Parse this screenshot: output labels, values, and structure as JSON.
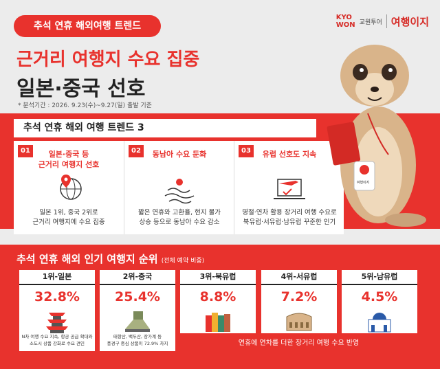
{
  "badge": "추석 연휴 해외여행 트렌드",
  "logo": {
    "brand_en_1": "KYO",
    "brand_en_2": "WON",
    "brand_ko": "교원투어",
    "service": "여행이지"
  },
  "headline": {
    "line1": "근거리 여행지 수요 집중",
    "line2": "일본·중국 선호"
  },
  "note": "* 분석기간 : 2026. 9.23(수)~9.27(일) 출발 기준",
  "trends": {
    "title": "추석 연휴 해외 여행 트렌드 3",
    "items": [
      {
        "number": "01",
        "title": [
          "일본·중국 등",
          "근거리 여행지 선호"
        ],
        "desc": [
          "일본 1위, 중국 2위로",
          "근거리 여행지에 수요 집중"
        ]
      },
      {
        "number": "02",
        "title": [
          "동남아 수요 둔화"
        ],
        "desc": [
          "짧은 연휴와 고환율, 현지 물가",
          "상승 등으로 동남아 수요 감소"
        ]
      },
      {
        "number": "03",
        "title": [
          "유럽 선호도 지속"
        ],
        "desc": [
          "명절·연차 활용 장거리 여행 수요로",
          "북유럽·서유럽·남유럽 꾸준한 인기"
        ]
      }
    ]
  },
  "mascot_tag": "여행이지",
  "ranking": {
    "title": "추석 연휴 해외 인기 여행지 순위",
    "subtitle": "(전체 예약 비중)",
    "items": [
      {
        "label": "1위-일본",
        "share": "32.8%",
        "desc": [
          "N차 여행 수요 지속, 항공 공급 확대와",
          "소도시 상품 강화로 수요 견인"
        ]
      },
      {
        "label": "2위-중국",
        "share": "25.4%",
        "desc": [
          "태항산, 백두산, 장가계 등",
          "풍경구 중심 상품이 72.9% 차지"
        ]
      },
      {
        "label": "3위-북유럽",
        "share": "8.8%"
      },
      {
        "label": "4위-서유럽",
        "share": "7.2%"
      },
      {
        "label": "5위-남유럽",
        "share": "4.5%"
      }
    ],
    "footnote": "연휴에 연차를 더한 장거리 여행 수요 반영"
  }
}
